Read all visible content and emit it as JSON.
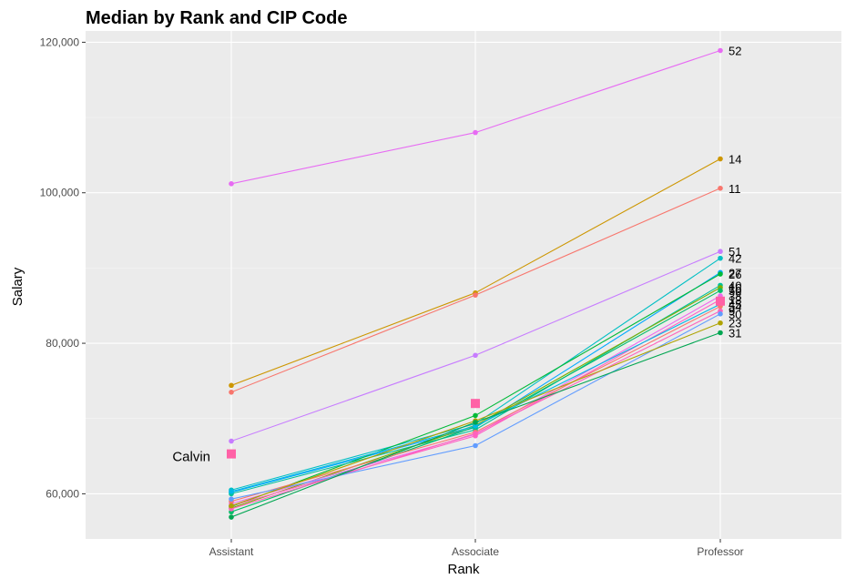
{
  "chart_data": {
    "type": "line",
    "title": "Median by Rank and CIP Code",
    "xlabel": "Rank",
    "ylabel": "Salary",
    "categories": [
      "Assistant",
      "Associate",
      "Professor"
    ],
    "ylim": [
      54000,
      121500
    ],
    "yticks": [
      60000,
      80000,
      100000,
      120000
    ],
    "ytick_labels": [
      "60,000",
      "80,000",
      "100,000",
      "120,000"
    ],
    "grid": true,
    "legend": "none",
    "series": [
      {
        "name": "52",
        "color": "#E76BF3",
        "values": [
          101200,
          108000,
          118900
        ]
      },
      {
        "name": "14",
        "color": "#CD9600",
        "values": [
          74400,
          86700,
          104500
        ]
      },
      {
        "name": "11",
        "color": "#F8766D",
        "values": [
          73500,
          86400,
          100600
        ]
      },
      {
        "name": "51",
        "color": "#C77CFF",
        "values": [
          67000,
          78400,
          92200
        ]
      },
      {
        "name": "42",
        "color": "#00BFC4",
        "values": [
          60500,
          69300,
          91300
        ]
      },
      {
        "name": "27",
        "color": "#00A9FF",
        "values": [
          60200,
          68800,
          89400
        ]
      },
      {
        "name": "26",
        "color": "#00BA38",
        "values": [
          58300,
          70400,
          89200
        ]
      },
      {
        "name": "40",
        "color": "#00C19A",
        "values": [
          60000,
          68500,
          87700
        ]
      },
      {
        "name": "16",
        "color": "#7CAE00",
        "values": [
          58100,
          69100,
          87400
        ]
      },
      {
        "name": "50",
        "color": "#00BE67",
        "values": [
          57600,
          68900,
          87000
        ]
      },
      {
        "name": "38",
        "color": "#ED68ED",
        "values": [
          58700,
          67900,
          86300
        ]
      },
      {
        "name": "13",
        "color": "#FF61C3",
        "values": [
          58400,
          67700,
          85800
        ]
      },
      {
        "name": "45",
        "color": "#00B8E7",
        "values": [
          60300,
          69000,
          85200
        ]
      },
      {
        "name": "54",
        "color": "#F8766D",
        "values": [
          59000,
          68200,
          84900
        ]
      },
      {
        "name": "9",
        "color": "#FF62BC",
        "values": [
          58000,
          68000,
          84300
        ]
      },
      {
        "name": "30",
        "color": "#619CFF",
        "values": [
          59300,
          66400,
          83900
        ]
      },
      {
        "name": "23",
        "color": "#AEA200",
        "values": [
          58400,
          69700,
          82700
        ]
      },
      {
        "name": "31",
        "color": "#00A651",
        "values": [
          56900,
          69500,
          81400
        ]
      }
    ],
    "annotation": {
      "label": "Calvin",
      "color": "#FF61A6",
      "values": [
        65300,
        72000,
        85600
      ]
    }
  }
}
